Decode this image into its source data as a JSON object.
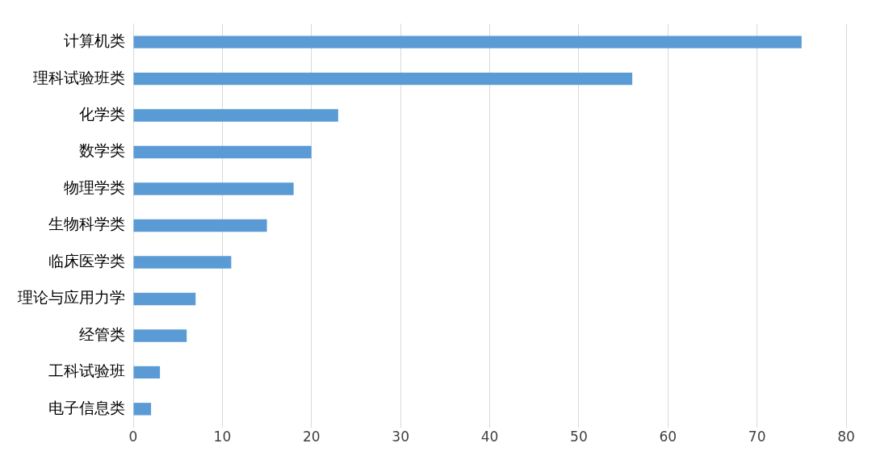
{
  "chart_data": {
    "type": "bar",
    "orientation": "horizontal",
    "categories": [
      "计算机类",
      "理科试验班类",
      "化学类",
      "数学类",
      "物理学类",
      "生物科学类",
      "临床医学类",
      "理论与应用力学",
      "经管类",
      "工科试验班",
      "电子信息类"
    ],
    "values": [
      75,
      56,
      23,
      20,
      18,
      15,
      11,
      7,
      6,
      3,
      2
    ],
    "color": "#5b9bd5",
    "xlim": [
      0,
      80
    ],
    "xticks": [
      0,
      10,
      20,
      30,
      40,
      50,
      60,
      70,
      80
    ],
    "grid": "x"
  }
}
